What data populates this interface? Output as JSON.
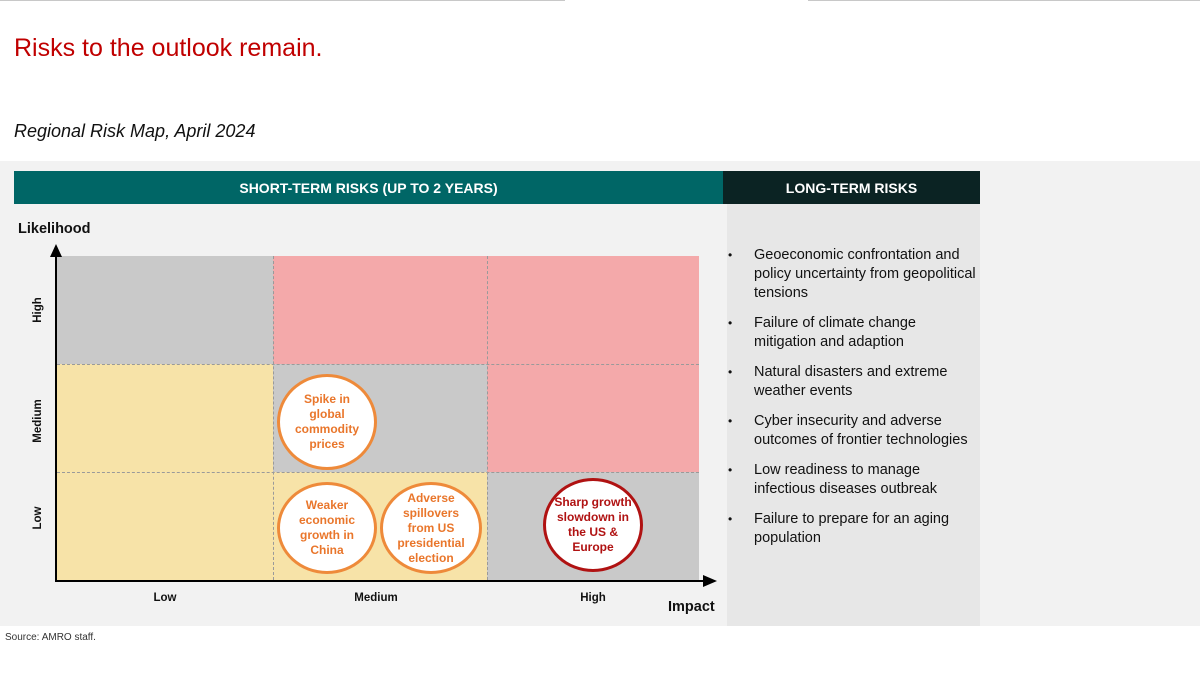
{
  "header": {
    "title": "Risks to the outlook remain.",
    "subtitle": "Regional Risk Map, April 2024"
  },
  "short_term": {
    "heading": "SHORT-TERM RISKS (UP TO 2 YEARS)",
    "y_axis_title": "Likelihood",
    "x_axis_title": "Impact",
    "y_levels": [
      "High",
      "Medium",
      "Low"
    ],
    "x_levels": [
      "Low",
      "Medium",
      "High"
    ],
    "risks": [
      {
        "label": "Spike in global commodity prices",
        "impact": "Medium",
        "likelihood": "Medium",
        "color": "#ee8a3a"
      },
      {
        "label": "Weaker economic growth in China",
        "impact": "Medium",
        "likelihood": "Low",
        "color": "#ee8a3a"
      },
      {
        "label": "Adverse spillovers from US presidential election",
        "impact": "Medium",
        "likelihood": "Low",
        "color": "#ee8a3a"
      },
      {
        "label": "Sharp growth slowdown in the US & Europe",
        "impact": "High",
        "likelihood": "Low",
        "color": "#b01212"
      }
    ],
    "zone_colors": {
      "grey": "#c9c9c9",
      "pink": "#f4a9aa",
      "yellow": "#f7e3a8"
    }
  },
  "long_term": {
    "heading": "LONG-TERM RISKS",
    "items": [
      "Geoeconomic confrontation and policy uncertainty from geopolitical tensions",
      "Failure of climate change mitigation and adaption",
      "Natural disasters and extreme weather events",
      "Cyber insecurity and adverse outcomes of frontier technologies",
      "Low readiness to manage infectious diseases outbreak",
      "Failure to prepare for an aging population"
    ]
  },
  "source": "Source: AMRO staff."
}
